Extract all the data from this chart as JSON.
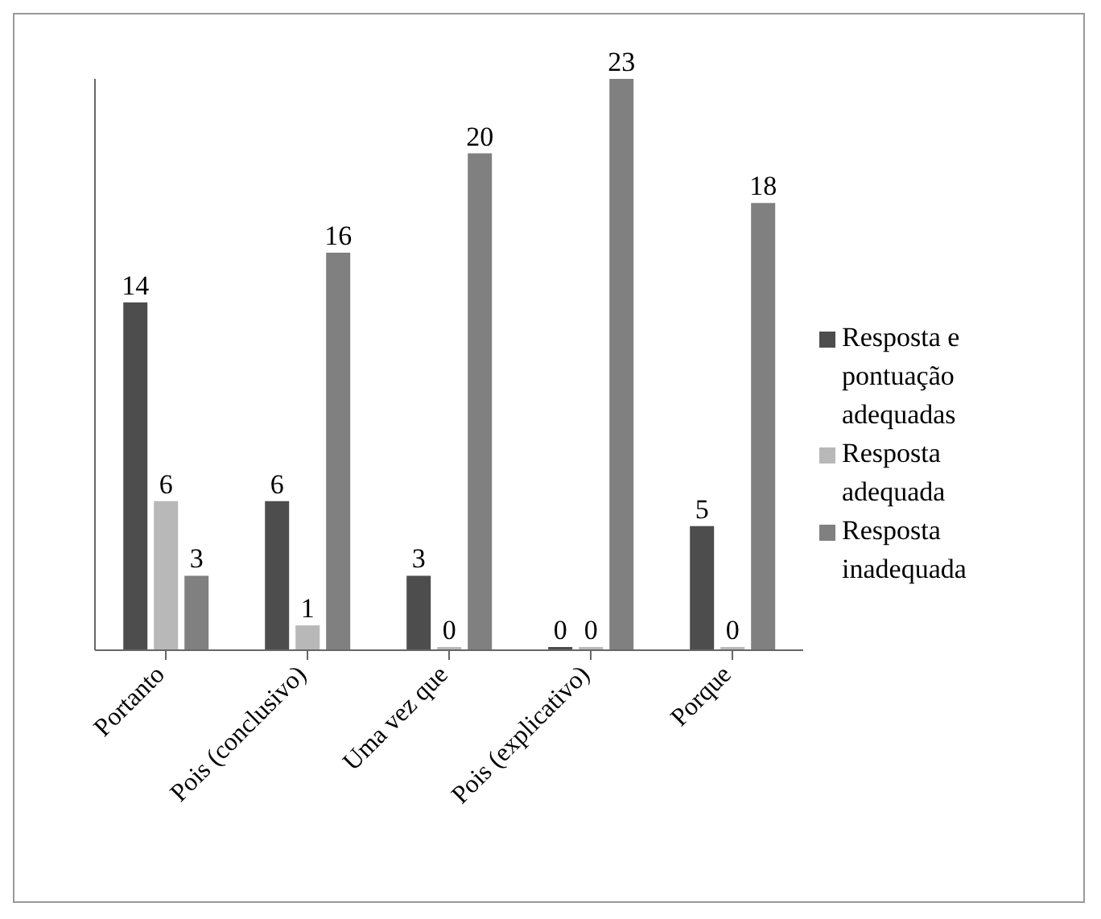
{
  "chart_data": {
    "type": "bar",
    "categories": [
      "Portanto",
      "Pois (conclusivo)",
      "Uma vez que",
      "Pois (explicativo)",
      "Porque"
    ],
    "series": [
      {
        "name": "Resposta e pontuação adequadas",
        "color": "#4d4d4d",
        "values": [
          14,
          6,
          3,
          0,
          5
        ]
      },
      {
        "name": "Resposta adequada",
        "color": "#b8b8b8",
        "values": [
          6,
          1,
          0,
          0,
          0
        ]
      },
      {
        "name": "Resposta inadequada",
        "color": "#808080",
        "values": [
          3,
          16,
          20,
          23,
          18
        ]
      }
    ],
    "tick_labels": "x",
    "legend": "right",
    "data_labels": true
  }
}
